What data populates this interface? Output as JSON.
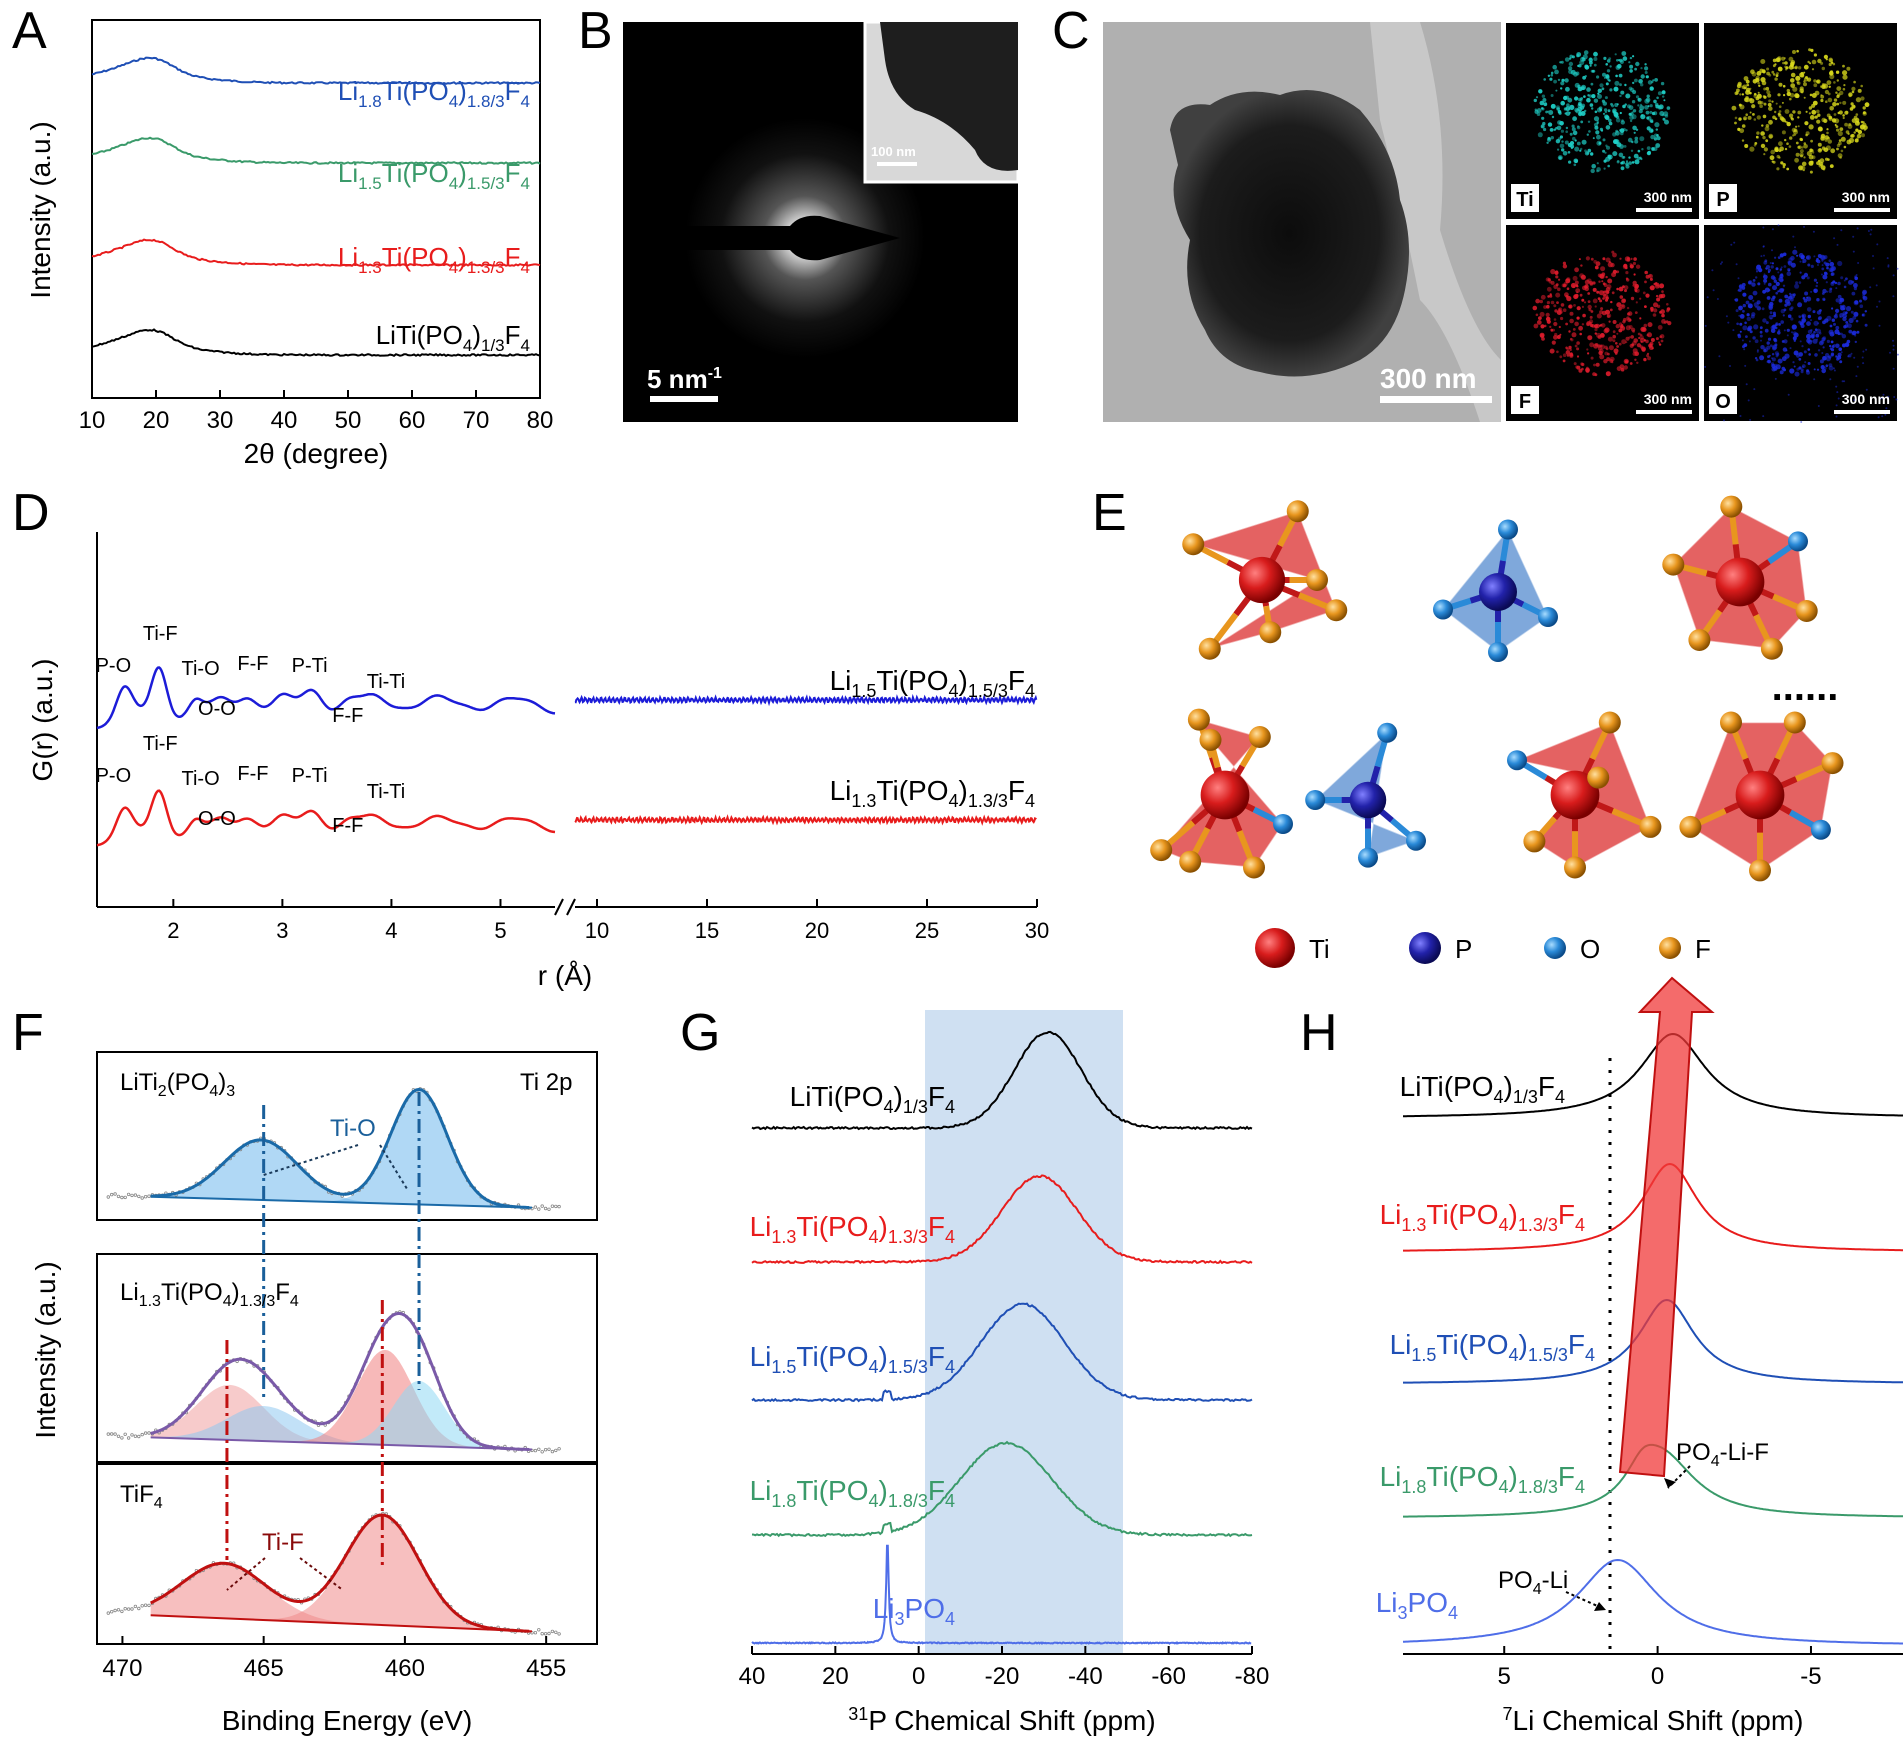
{
  "figure": {
    "panel_labels": [
      "A",
      "B",
      "C",
      "D",
      "E",
      "F",
      "G",
      "H"
    ],
    "colors": {
      "black": "#000000",
      "red": "#e81c1c",
      "blue": "#1f4fb5",
      "green": "#3a9a6a",
      "lightblue": "#4f6ee8",
      "ti": "#d81c1c",
      "p": "#2222aa",
      "o": "#2a8ad8",
      "f": "#e8961e",
      "shade": "#cfe0f2"
    }
  },
  "panelA": {
    "ylabel": "Intensity (a.u.)",
    "xlabel": "2θ (degree)",
    "xticks": [
      "10",
      "20",
      "30",
      "40",
      "50",
      "60",
      "70",
      "80"
    ],
    "series": [
      {
        "base": "Li",
        "sub1": "1.8",
        "mid": "Ti(PO",
        "sub2": "4",
        "mid2": ")",
        "sub3": "1.8/3",
        "tail": "F",
        "sub4": "4",
        "color": "#1f4fb5"
      },
      {
        "base": "Li",
        "sub1": "1.5",
        "mid": "Ti(PO",
        "sub2": "4",
        "mid2": ")",
        "sub3": "1.5/3",
        "tail": "F",
        "sub4": "4",
        "color": "#3a9a6a"
      },
      {
        "base": "Li",
        "sub1": "1.3",
        "mid": "Ti(PO",
        "sub2": "4",
        "mid2": ")",
        "sub3": "1.3/3",
        "tail": "F",
        "sub4": "4",
        "color": "#e81c1c"
      },
      {
        "base": "LiTi(PO",
        "sub1": "4",
        "mid": ")",
        "sub2": "1/3",
        "mid2": "F",
        "sub3": "4",
        "tail": "",
        "sub4": "",
        "color": "#000000"
      }
    ]
  },
  "panelB": {
    "scalebar": "5 nm",
    "scale_exp": "-1",
    "inset_scalebar": "100 nm"
  },
  "panelC": {
    "scalebar": "300 nm",
    "maps": [
      {
        "element": "Ti",
        "scalebar": "300 nm",
        "color": "#1fd0c8"
      },
      {
        "element": "P",
        "scalebar": "300 nm",
        "color": "#d8d81c"
      },
      {
        "element": "F",
        "scalebar": "300 nm",
        "color": "#e01c2c"
      },
      {
        "element": "O",
        "scalebar": "300 nm",
        "color": "#1c2ce0"
      }
    ]
  },
  "panelD": {
    "ylabel": "G(r) (a.u.)",
    "xlabel": "r (Å)",
    "xticks_left": [
      "2",
      "3",
      "4",
      "5"
    ],
    "xticks_right": [
      "10",
      "15",
      "20",
      "25",
      "30"
    ],
    "peaks": [
      "P-O",
      "Ti-F",
      "Ti-O",
      "O-O",
      "F-F",
      "P-Ti",
      "F-F",
      "Ti-Ti"
    ],
    "series": [
      {
        "base": "Li",
        "sub1": "1.5",
        "mid": "Ti(PO",
        "sub2": "4",
        "mid2": ")",
        "sub3": "1.5/3",
        "tail": "F",
        "sub4": "4",
        "color": "#1c1cd8"
      },
      {
        "base": "Li",
        "sub1": "1.3",
        "mid": "Ti(PO",
        "sub2": "4",
        "mid2": ")",
        "sub3": "1.3/3",
        "tail": "F",
        "sub4": "4",
        "color": "#e81c1c"
      }
    ]
  },
  "panelE": {
    "legend": [
      "Ti",
      "P",
      "O",
      "F"
    ],
    "ellipsis": "......"
  },
  "panelF": {
    "ylabel": "Intensity (a.u.)",
    "xlabel": "Binding Energy (eV)",
    "xticks": [
      "470",
      "465",
      "460",
      "455"
    ],
    "sub_top": {
      "label_base": "LiTi",
      "label_sub1": "2",
      "label_mid": "(PO",
      "label_sub2": "4",
      "label_tail": ")",
      "label_sub3": "3",
      "corner": "Ti 2p",
      "peak": "Ti-O"
    },
    "sub_mid": {
      "label_base": "Li",
      "label_sub1": "1.3",
      "label_mid": "Ti(PO",
      "label_sub2": "4",
      "label_tail": ")",
      "label_sub3": "1.3/3",
      "label_tail2": "F",
      "label_sub4": "4"
    },
    "sub_bot": {
      "label_base": "TiF",
      "label_sub1": "4",
      "peak": "Ti-F"
    }
  },
  "panelG": {
    "xlabel_sup": "31",
    "xlabel": "P Chemical Shift (ppm)",
    "xticks": [
      "40",
      "20",
      "0",
      "-20",
      "-40",
      "-60",
      "-80"
    ],
    "series": [
      {
        "base": "LiTi(PO",
        "sub1": "4",
        "mid": ")",
        "sub2": "1/3",
        "mid2": "F",
        "sub3": "4",
        "color": "#000000"
      },
      {
        "base": "Li",
        "sub1": "1.3",
        "mid": "Ti(PO",
        "sub2": "4",
        "mid2": ")",
        "sub3": "1.3/3",
        "tail": "F",
        "sub4": "4",
        "color": "#e81c1c"
      },
      {
        "base": "Li",
        "sub1": "1.5",
        "mid": "Ti(PO",
        "sub2": "4",
        "mid2": ")",
        "sub3": "1.5/3",
        "tail": "F",
        "sub4": "4",
        "color": "#1f4fb5"
      },
      {
        "base": "Li",
        "sub1": "1.8",
        "mid": "Ti(PO",
        "sub2": "4",
        "mid2": ")",
        "sub3": "1.8/3",
        "tail": "F",
        "sub4": "4",
        "color": "#3a9a6a"
      },
      {
        "base": "Li",
        "sub1": "3",
        "mid": "PO",
        "sub2": "4",
        "color": "#4f6ee8"
      }
    ]
  },
  "panelH": {
    "xlabel_sup": "7",
    "xlabel": "Li Chemical Shift (ppm)",
    "xticks": [
      "5",
      "0",
      "-5"
    ],
    "annot1_base": "PO",
    "annot1_sub": "4",
    "annot1_tail": "-Li-F",
    "annot2_base": "PO",
    "annot2_sub": "4",
    "annot2_tail": "-Li",
    "series": [
      {
        "base": "LiTi(PO",
        "sub1": "4",
        "mid": ")",
        "sub2": "1/3",
        "mid2": "F",
        "sub3": "4",
        "color": "#000000"
      },
      {
        "base": "Li",
        "sub1": "1.3",
        "mid": "Ti(PO",
        "sub2": "4",
        "mid2": ")",
        "sub3": "1.3/3",
        "tail": "F",
        "sub4": "4",
        "color": "#e81c1c"
      },
      {
        "base": "Li",
        "sub1": "1.5",
        "mid": "Ti(PO",
        "sub2": "4",
        "mid2": ")",
        "sub3": "1.5/3",
        "tail": "F",
        "sub4": "4",
        "color": "#1f4fb5"
      },
      {
        "base": "Li",
        "sub1": "1.8",
        "mid": "Ti(PO",
        "sub2": "4",
        "mid2": ")",
        "sub3": "1.8/3",
        "tail": "F",
        "sub4": "4",
        "color": "#3a9a6a"
      },
      {
        "base": "Li",
        "sub1": "3",
        "mid": "PO",
        "sub2": "4",
        "color": "#4f6ee8"
      }
    ]
  }
}
